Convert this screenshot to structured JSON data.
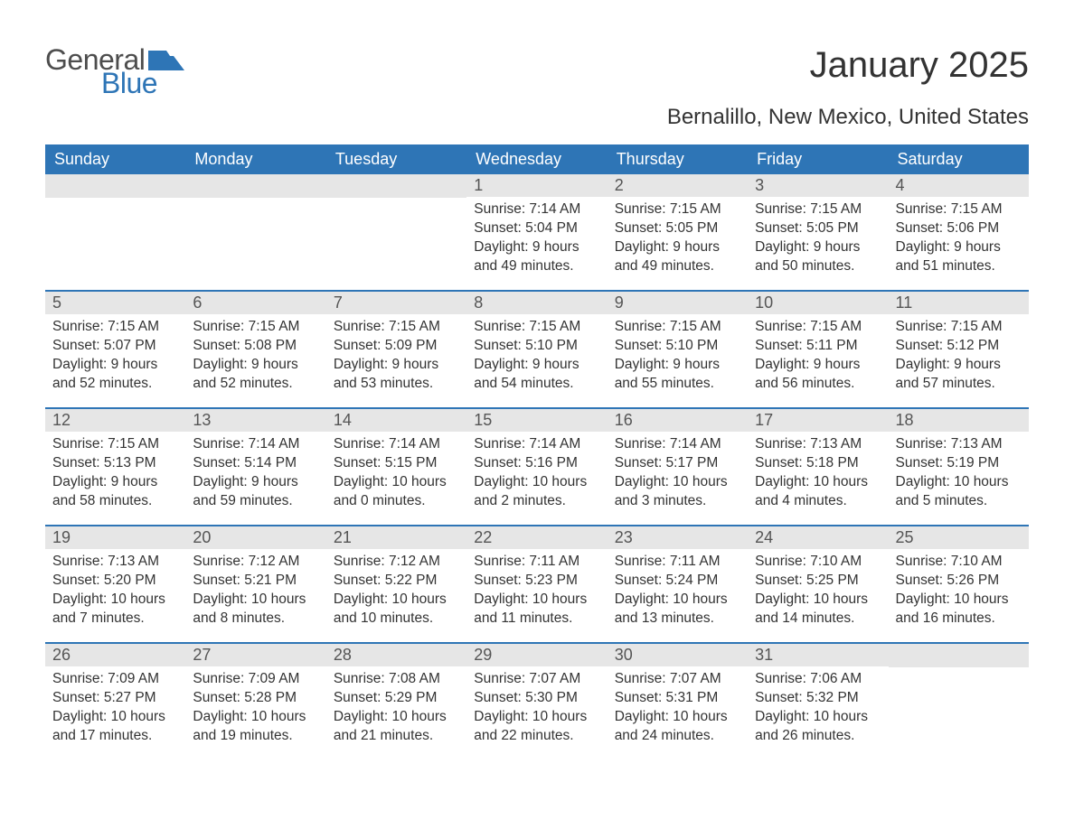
{
  "logo": {
    "text1": "General",
    "text2": "Blue",
    "flag_color": "#2e75b6"
  },
  "title": "January 2025",
  "subtitle": "Bernalillo, New Mexico, United States",
  "colors": {
    "header_bg": "#2e75b6",
    "header_text": "#ffffff",
    "daynum_bg": "#e6e6e6",
    "text": "#333333",
    "rule": "#2e75b6"
  },
  "fonts": {
    "title_size": 40,
    "subtitle_size": 24,
    "header_size": 18,
    "body_size": 15.5
  },
  "day_names": [
    "Sunday",
    "Monday",
    "Tuesday",
    "Wednesday",
    "Thursday",
    "Friday",
    "Saturday"
  ],
  "weeks": [
    [
      {
        "blank": true
      },
      {
        "blank": true
      },
      {
        "blank": true
      },
      {
        "n": "1",
        "sunrise": "Sunrise: 7:14 AM",
        "sunset": "Sunset: 5:04 PM",
        "daylight": "Daylight: 9 hours and 49 minutes."
      },
      {
        "n": "2",
        "sunrise": "Sunrise: 7:15 AM",
        "sunset": "Sunset: 5:05 PM",
        "daylight": "Daylight: 9 hours and 49 minutes."
      },
      {
        "n": "3",
        "sunrise": "Sunrise: 7:15 AM",
        "sunset": "Sunset: 5:05 PM",
        "daylight": "Daylight: 9 hours and 50 minutes."
      },
      {
        "n": "4",
        "sunrise": "Sunrise: 7:15 AM",
        "sunset": "Sunset: 5:06 PM",
        "daylight": "Daylight: 9 hours and 51 minutes."
      }
    ],
    [
      {
        "n": "5",
        "sunrise": "Sunrise: 7:15 AM",
        "sunset": "Sunset: 5:07 PM",
        "daylight": "Daylight: 9 hours and 52 minutes."
      },
      {
        "n": "6",
        "sunrise": "Sunrise: 7:15 AM",
        "sunset": "Sunset: 5:08 PM",
        "daylight": "Daylight: 9 hours and 52 minutes."
      },
      {
        "n": "7",
        "sunrise": "Sunrise: 7:15 AM",
        "sunset": "Sunset: 5:09 PM",
        "daylight": "Daylight: 9 hours and 53 minutes."
      },
      {
        "n": "8",
        "sunrise": "Sunrise: 7:15 AM",
        "sunset": "Sunset: 5:10 PM",
        "daylight": "Daylight: 9 hours and 54 minutes."
      },
      {
        "n": "9",
        "sunrise": "Sunrise: 7:15 AM",
        "sunset": "Sunset: 5:10 PM",
        "daylight": "Daylight: 9 hours and 55 minutes."
      },
      {
        "n": "10",
        "sunrise": "Sunrise: 7:15 AM",
        "sunset": "Sunset: 5:11 PM",
        "daylight": "Daylight: 9 hours and 56 minutes."
      },
      {
        "n": "11",
        "sunrise": "Sunrise: 7:15 AM",
        "sunset": "Sunset: 5:12 PM",
        "daylight": "Daylight: 9 hours and 57 minutes."
      }
    ],
    [
      {
        "n": "12",
        "sunrise": "Sunrise: 7:15 AM",
        "sunset": "Sunset: 5:13 PM",
        "daylight": "Daylight: 9 hours and 58 minutes."
      },
      {
        "n": "13",
        "sunrise": "Sunrise: 7:14 AM",
        "sunset": "Sunset: 5:14 PM",
        "daylight": "Daylight: 9 hours and 59 minutes."
      },
      {
        "n": "14",
        "sunrise": "Sunrise: 7:14 AM",
        "sunset": "Sunset: 5:15 PM",
        "daylight": "Daylight: 10 hours and 0 minutes."
      },
      {
        "n": "15",
        "sunrise": "Sunrise: 7:14 AM",
        "sunset": "Sunset: 5:16 PM",
        "daylight": "Daylight: 10 hours and 2 minutes."
      },
      {
        "n": "16",
        "sunrise": "Sunrise: 7:14 AM",
        "sunset": "Sunset: 5:17 PM",
        "daylight": "Daylight: 10 hours and 3 minutes."
      },
      {
        "n": "17",
        "sunrise": "Sunrise: 7:13 AM",
        "sunset": "Sunset: 5:18 PM",
        "daylight": "Daylight: 10 hours and 4 minutes."
      },
      {
        "n": "18",
        "sunrise": "Sunrise: 7:13 AM",
        "sunset": "Sunset: 5:19 PM",
        "daylight": "Daylight: 10 hours and 5 minutes."
      }
    ],
    [
      {
        "n": "19",
        "sunrise": "Sunrise: 7:13 AM",
        "sunset": "Sunset: 5:20 PM",
        "daylight": "Daylight: 10 hours and 7 minutes."
      },
      {
        "n": "20",
        "sunrise": "Sunrise: 7:12 AM",
        "sunset": "Sunset: 5:21 PM",
        "daylight": "Daylight: 10 hours and 8 minutes."
      },
      {
        "n": "21",
        "sunrise": "Sunrise: 7:12 AM",
        "sunset": "Sunset: 5:22 PM",
        "daylight": "Daylight: 10 hours and 10 minutes."
      },
      {
        "n": "22",
        "sunrise": "Sunrise: 7:11 AM",
        "sunset": "Sunset: 5:23 PM",
        "daylight": "Daylight: 10 hours and 11 minutes."
      },
      {
        "n": "23",
        "sunrise": "Sunrise: 7:11 AM",
        "sunset": "Sunset: 5:24 PM",
        "daylight": "Daylight: 10 hours and 13 minutes."
      },
      {
        "n": "24",
        "sunrise": "Sunrise: 7:10 AM",
        "sunset": "Sunset: 5:25 PM",
        "daylight": "Daylight: 10 hours and 14 minutes."
      },
      {
        "n": "25",
        "sunrise": "Sunrise: 7:10 AM",
        "sunset": "Sunset: 5:26 PM",
        "daylight": "Daylight: 10 hours and 16 minutes."
      }
    ],
    [
      {
        "n": "26",
        "sunrise": "Sunrise: 7:09 AM",
        "sunset": "Sunset: 5:27 PM",
        "daylight": "Daylight: 10 hours and 17 minutes."
      },
      {
        "n": "27",
        "sunrise": "Sunrise: 7:09 AM",
        "sunset": "Sunset: 5:28 PM",
        "daylight": "Daylight: 10 hours and 19 minutes."
      },
      {
        "n": "28",
        "sunrise": "Sunrise: 7:08 AM",
        "sunset": "Sunset: 5:29 PM",
        "daylight": "Daylight: 10 hours and 21 minutes."
      },
      {
        "n": "29",
        "sunrise": "Sunrise: 7:07 AM",
        "sunset": "Sunset: 5:30 PM",
        "daylight": "Daylight: 10 hours and 22 minutes."
      },
      {
        "n": "30",
        "sunrise": "Sunrise: 7:07 AM",
        "sunset": "Sunset: 5:31 PM",
        "daylight": "Daylight: 10 hours and 24 minutes."
      },
      {
        "n": "31",
        "sunrise": "Sunrise: 7:06 AM",
        "sunset": "Sunset: 5:32 PM",
        "daylight": "Daylight: 10 hours and 26 minutes."
      },
      {
        "blank": true
      }
    ]
  ]
}
